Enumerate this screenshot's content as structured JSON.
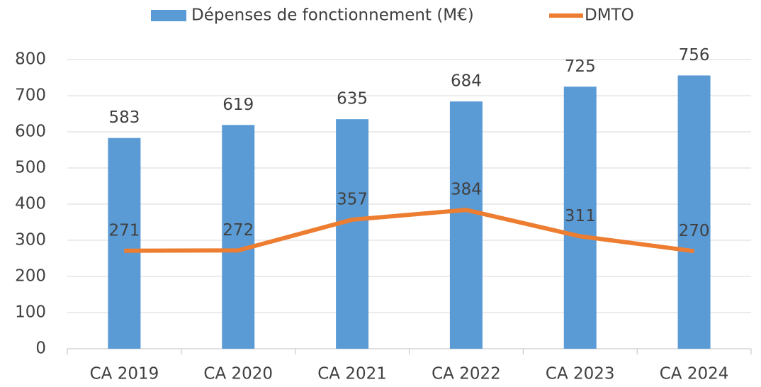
{
  "chart_data": {
    "type": "combo",
    "categories": [
      "CA 2019",
      "CA 2020",
      "CA 2021",
      "CA 2022",
      "CA 2023",
      "CA 2024"
    ],
    "series": [
      {
        "name": "Dépenses de fonctionnement (M€)",
        "type": "bar",
        "color": "#5b9bd5",
        "values": [
          583,
          619,
          635,
          684,
          725,
          756
        ]
      },
      {
        "name": "DMTO",
        "type": "line",
        "color": "#ed7d31",
        "values": [
          271,
          272,
          357,
          384,
          311,
          270
        ]
      }
    ],
    "ylim": [
      0,
      800
    ],
    "yticks": [
      0,
      100,
      200,
      300,
      400,
      500,
      600,
      700,
      800
    ],
    "grid": true,
    "legend": "top"
  }
}
